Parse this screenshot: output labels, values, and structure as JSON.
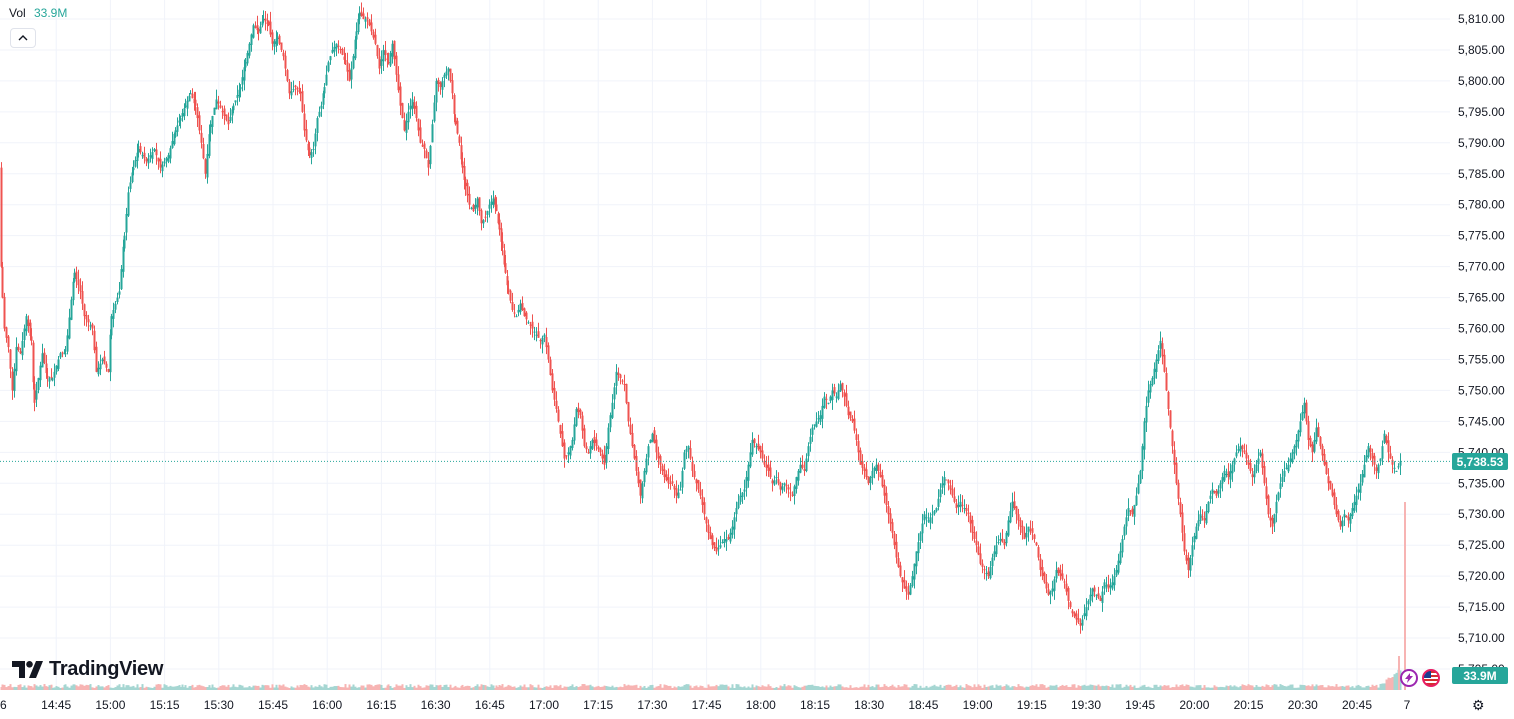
{
  "header": {
    "vol_label": "Vol",
    "vol_value": "33.9M"
  },
  "logo_text": "TradingView",
  "colors": {
    "up": "#26a69a",
    "down": "#ef5350",
    "grid": "#f0f3fa",
    "axis_text": "#131722"
  },
  "icons": {
    "collapse": "chevron-up-icon",
    "settings": "gear-icon",
    "lightning": "lightning-icon",
    "flag": "us-flag-icon"
  },
  "chart_data": {
    "type": "candlestick",
    "price_axis": {
      "ylim": [
        5703,
        5812
      ],
      "ticks": [
        "5,810.00",
        "5,805.00",
        "5,800.00",
        "5,795.00",
        "5,790.00",
        "5,785.00",
        "5,780.00",
        "5,775.00",
        "5,770.00",
        "5,765.00",
        "5,760.00",
        "5,755.00",
        "5,750.00",
        "5,745.00",
        "5,740.00",
        "5,735.00",
        "5,730.00",
        "5,725.00",
        "5,720.00",
        "5,715.00",
        "5,710.00",
        "5,705.00"
      ],
      "tick_values": [
        5810,
        5805,
        5800,
        5795,
        5790,
        5785,
        5780,
        5775,
        5770,
        5765,
        5760,
        5755,
        5750,
        5745,
        5740,
        5735,
        5730,
        5725,
        5720,
        5715,
        5710,
        5705
      ]
    },
    "time_axis": {
      "ticks": [
        "6",
        "14:45",
        "15:00",
        "15:15",
        "15:30",
        "15:45",
        "16:00",
        "16:15",
        "16:30",
        "16:45",
        "17:00",
        "17:15",
        "17:30",
        "17:45",
        "18:00",
        "18:15",
        "18:30",
        "18:45",
        "19:00",
        "19:15",
        "19:30",
        "19:45",
        "20:00",
        "20:15",
        "20:30",
        "20:45",
        "7"
      ]
    },
    "last_price": {
      "value": 5738.53,
      "label": "5,738.53"
    },
    "last_volume": {
      "label": "33.9M"
    },
    "anchors": [
      [
        0,
        5786
      ],
      [
        1,
        5770
      ],
      [
        2,
        5765
      ],
      [
        4,
        5760
      ],
      [
        8,
        5757
      ],
      [
        12,
        5750
      ],
      [
        16,
        5757
      ],
      [
        20,
        5756
      ],
      [
        26,
        5762
      ],
      [
        31,
        5758
      ],
      [
        34,
        5748
      ],
      [
        42,
        5756
      ],
      [
        47,
        5752
      ],
      [
        52,
        5752
      ],
      [
        60,
        5756
      ],
      [
        65,
        5756
      ],
      [
        74,
        5769
      ],
      [
        80,
        5766
      ],
      [
        84,
        5762
      ],
      [
        92,
        5760
      ],
      [
        96,
        5753
      ],
      [
        102,
        5755
      ],
      [
        108,
        5753
      ],
      [
        111,
        5762
      ],
      [
        119,
        5766
      ],
      [
        124,
        5775
      ],
      [
        128,
        5782
      ],
      [
        133,
        5786
      ],
      [
        138,
        5789
      ],
      [
        146,
        5787
      ],
      [
        154,
        5789
      ],
      [
        160,
        5786
      ],
      [
        168,
        5788
      ],
      [
        175,
        5792
      ],
      [
        180,
        5794
      ],
      [
        185,
        5796
      ],
      [
        190,
        5798
      ],
      [
        195,
        5796
      ],
      [
        201,
        5790
      ],
      [
        205,
        5785
      ],
      [
        210,
        5793
      ],
      [
        216,
        5797
      ],
      [
        222,
        5795
      ],
      [
        228,
        5793
      ],
      [
        233,
        5796
      ],
      [
        240,
        5799
      ],
      [
        245,
        5803
      ],
      [
        249,
        5806
      ],
      [
        253,
        5809
      ],
      [
        258,
        5808
      ],
      [
        263,
        5810
      ],
      [
        268,
        5809
      ],
      [
        272,
        5806
      ],
      [
        277,
        5807
      ],
      [
        283,
        5804
      ],
      [
        289,
        5798
      ],
      [
        295,
        5799
      ],
      [
        300,
        5798
      ],
      [
        304,
        5792
      ],
      [
        309,
        5788
      ],
      [
        313,
        5789
      ],
      [
        317,
        5794
      ],
      [
        321,
        5796
      ],
      [
        324,
        5799
      ],
      [
        328,
        5803
      ],
      [
        332,
        5805
      ],
      [
        336,
        5806
      ],
      [
        340,
        5805
      ],
      [
        345,
        5803
      ],
      [
        349,
        5800
      ],
      [
        353,
        5804
      ],
      [
        356,
        5808
      ],
      [
        359,
        5811
      ],
      [
        363,
        5810
      ],
      [
        367,
        5810
      ],
      [
        371,
        5808
      ],
      [
        375,
        5806
      ],
      [
        379,
        5802
      ],
      [
        383,
        5805
      ],
      [
        388,
        5803
      ],
      [
        392,
        5806
      ],
      [
        396,
        5801
      ],
      [
        400,
        5796
      ],
      [
        404,
        5792
      ],
      [
        408,
        5795
      ],
      [
        412,
        5797
      ],
      [
        416,
        5794
      ],
      [
        420,
        5790
      ],
      [
        424,
        5789
      ],
      [
        428,
        5786
      ],
      [
        432,
        5793
      ],
      [
        436,
        5800
      ],
      [
        440,
        5799
      ],
      [
        444,
        5801
      ],
      [
        448,
        5802
      ],
      [
        452,
        5798
      ],
      [
        455,
        5793
      ],
      [
        459,
        5790
      ],
      [
        462,
        5786
      ],
      [
        465,
        5783
      ],
      [
        469,
        5780
      ],
      [
        473,
        5779
      ],
      [
        477,
        5781
      ],
      [
        481,
        5777
      ],
      [
        485,
        5778
      ],
      [
        489,
        5780
      ],
      [
        493,
        5781
      ],
      [
        496,
        5779
      ],
      [
        499,
        5776
      ],
      [
        502,
        5773
      ],
      [
        505,
        5769
      ],
      [
        508,
        5766
      ],
      [
        512,
        5763
      ],
      [
        516,
        5762
      ],
      [
        520,
        5764
      ],
      [
        524,
        5762
      ],
      [
        528,
        5761
      ],
      [
        532,
        5760
      ],
      [
        536,
        5759
      ],
      [
        540,
        5758
      ],
      [
        544,
        5759
      ],
      [
        548,
        5755
      ],
      [
        552,
        5750
      ],
      [
        556,
        5747
      ],
      [
        560,
        5743
      ],
      [
        564,
        5739
      ],
      [
        568,
        5740
      ],
      [
        572,
        5742
      ],
      [
        576,
        5747
      ],
      [
        580,
        5746
      ],
      [
        584,
        5741
      ],
      [
        588,
        5740
      ],
      [
        592,
        5742
      ],
      [
        596,
        5741
      ],
      [
        600,
        5740
      ],
      [
        604,
        5738
      ],
      [
        608,
        5744
      ],
      [
        612,
        5748
      ],
      [
        616,
        5753
      ],
      [
        620,
        5752
      ],
      [
        624,
        5751
      ],
      [
        628,
        5745
      ],
      [
        632,
        5741
      ],
      [
        636,
        5737
      ],
      [
        640,
        5733
      ],
      [
        644,
        5737
      ],
      [
        648,
        5741
      ],
      [
        652,
        5743
      ],
      [
        656,
        5740
      ],
      [
        660,
        5738
      ],
      [
        664,
        5736
      ],
      [
        668,
        5735
      ],
      [
        672,
        5735
      ],
      [
        676,
        5733
      ],
      [
        680,
        5734
      ],
      [
        684,
        5740
      ],
      [
        688,
        5741
      ],
      [
        692,
        5737
      ],
      [
        696,
        5735
      ],
      [
        700,
        5733
      ],
      [
        704,
        5730
      ],
      [
        708,
        5727
      ],
      [
        712,
        5725
      ],
      [
        716,
        5724
      ],
      [
        720,
        5725
      ],
      [
        724,
        5726
      ],
      [
        728,
        5726
      ],
      [
        732,
        5728
      ],
      [
        736,
        5731
      ],
      [
        740,
        5733
      ],
      [
        744,
        5734
      ],
      [
        748,
        5738
      ],
      [
        752,
        5742
      ],
      [
        756,
        5741
      ],
      [
        760,
        5740
      ],
      [
        764,
        5738
      ],
      [
        768,
        5737
      ],
      [
        772,
        5735
      ],
      [
        776,
        5736
      ],
      [
        780,
        5734
      ],
      [
        784,
        5735
      ],
      [
        788,
        5734
      ],
      [
        792,
        5733
      ],
      [
        796,
        5736
      ],
      [
        800,
        5738
      ],
      [
        804,
        5737
      ],
      [
        808,
        5741
      ],
      [
        812,
        5744
      ],
      [
        816,
        5745
      ],
      [
        820,
        5746
      ],
      [
        824,
        5749
      ],
      [
        828,
        5748
      ],
      [
        832,
        5750
      ],
      [
        836,
        5749
      ],
      [
        840,
        5751
      ],
      [
        844,
        5749
      ],
      [
        848,
        5746
      ],
      [
        852,
        5745
      ],
      [
        856,
        5742
      ],
      [
        860,
        5738
      ],
      [
        864,
        5737
      ],
      [
        868,
        5735
      ],
      [
        872,
        5737
      ],
      [
        876,
        5738
      ],
      [
        880,
        5736
      ],
      [
        884,
        5733
      ],
      [
        888,
        5730
      ],
      [
        892,
        5727
      ],
      [
        896,
        5723
      ],
      [
        900,
        5720
      ],
      [
        904,
        5718
      ],
      [
        908,
        5717
      ],
      [
        912,
        5720
      ],
      [
        916,
        5724
      ],
      [
        920,
        5727
      ],
      [
        924,
        5730
      ],
      [
        928,
        5729
      ],
      [
        932,
        5730
      ],
      [
        936,
        5731
      ],
      [
        940,
        5734
      ],
      [
        944,
        5736
      ],
      [
        948,
        5735
      ],
      [
        952,
        5733
      ],
      [
        956,
        5731
      ],
      [
        960,
        5732
      ],
      [
        964,
        5731
      ],
      [
        968,
        5730
      ],
      [
        972,
        5727
      ],
      [
        976,
        5725
      ],
      [
        980,
        5722
      ],
      [
        984,
        5721
      ],
      [
        988,
        5720
      ],
      [
        992,
        5723
      ],
      [
        996,
        5725
      ],
      [
        1000,
        5726
      ],
      [
        1004,
        5725
      ],
      [
        1008,
        5729
      ],
      [
        1012,
        5732
      ],
      [
        1016,
        5730
      ],
      [
        1020,
        5728
      ],
      [
        1024,
        5726
      ],
      [
        1028,
        5728
      ],
      [
        1032,
        5727
      ],
      [
        1036,
        5725
      ],
      [
        1040,
        5721
      ],
      [
        1044,
        5719
      ],
      [
        1048,
        5717
      ],
      [
        1052,
        5718
      ],
      [
        1056,
        5721
      ],
      [
        1060,
        5720
      ],
      [
        1064,
        5719
      ],
      [
        1068,
        5716
      ],
      [
        1072,
        5714
      ],
      [
        1076,
        5713
      ],
      [
        1080,
        5712
      ],
      [
        1084,
        5714
      ],
      [
        1088,
        5716
      ],
      [
        1092,
        5718
      ],
      [
        1096,
        5717
      ],
      [
        1100,
        5716
      ],
      [
        1104,
        5719
      ],
      [
        1108,
        5718
      ],
      [
        1112,
        5719
      ],
      [
        1116,
        5721
      ],
      [
        1120,
        5724
      ],
      [
        1124,
        5728
      ],
      [
        1128,
        5731
      ],
      [
        1132,
        5730
      ],
      [
        1136,
        5733
      ],
      [
        1140,
        5737
      ],
      [
        1144,
        5745
      ],
      [
        1148,
        5750
      ],
      [
        1152,
        5752
      ],
      [
        1156,
        5755
      ],
      [
        1160,
        5758
      ],
      [
        1164,
        5753
      ],
      [
        1168,
        5747
      ],
      [
        1172,
        5741
      ],
      [
        1176,
        5735
      ],
      [
        1180,
        5730
      ],
      [
        1184,
        5724
      ],
      [
        1188,
        5721
      ],
      [
        1192,
        5725
      ],
      [
        1196,
        5728
      ],
      [
        1200,
        5730
      ],
      [
        1204,
        5729
      ],
      [
        1208,
        5732
      ],
      [
        1212,
        5734
      ],
      [
        1216,
        5733
      ],
      [
        1220,
        5735
      ],
      [
        1224,
        5737
      ],
      [
        1228,
        5736
      ],
      [
        1232,
        5738
      ],
      [
        1236,
        5740
      ],
      [
        1240,
        5741
      ],
      [
        1244,
        5740
      ],
      [
        1248,
        5738
      ],
      [
        1252,
        5736
      ],
      [
        1256,
        5738
      ],
      [
        1260,
        5740
      ],
      [
        1264,
        5735
      ],
      [
        1268,
        5730
      ],
      [
        1272,
        5728
      ],
      [
        1276,
        5732
      ],
      [
        1280,
        5735
      ],
      [
        1284,
        5737
      ],
      [
        1288,
        5738
      ],
      [
        1292,
        5740
      ],
      [
        1296,
        5742
      ],
      [
        1300,
        5745
      ],
      [
        1304,
        5748
      ],
      [
        1308,
        5742
      ],
      [
        1312,
        5740
      ],
      [
        1316,
        5744
      ],
      [
        1320,
        5741
      ],
      [
        1324,
        5738
      ],
      [
        1328,
        5735
      ],
      [
        1332,
        5733
      ],
      [
        1336,
        5730
      ],
      [
        1340,
        5728
      ],
      [
        1344,
        5730
      ],
      [
        1348,
        5729
      ],
      [
        1352,
        5731
      ],
      [
        1356,
        5733
      ],
      [
        1360,
        5735
      ],
      [
        1364,
        5738
      ],
      [
        1368,
        5741
      ],
      [
        1372,
        5739
      ],
      [
        1376,
        5737
      ],
      [
        1380,
        5739
      ],
      [
        1384,
        5743
      ],
      [
        1388,
        5740
      ],
      [
        1392,
        5738
      ],
      [
        1396,
        5737
      ],
      [
        1400,
        5738.53
      ]
    ]
  }
}
